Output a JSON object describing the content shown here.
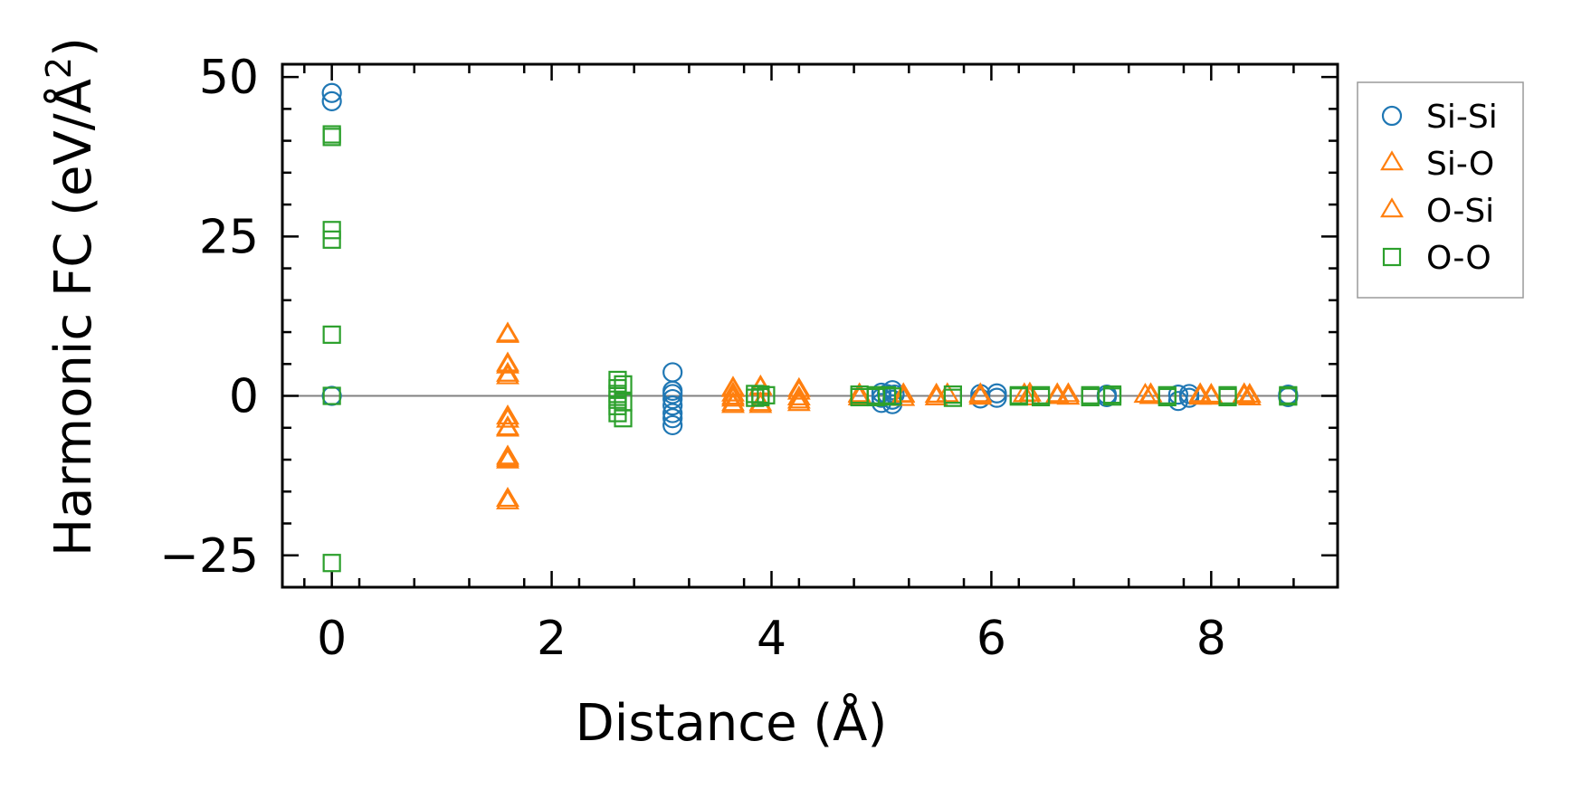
{
  "chart_data": {
    "type": "scatter",
    "xlabel": "Distance (Å)",
    "ylabel_main": "Harmonic FC (eV/Å",
    "ylabel_sup": "2",
    "ylabel_close": ")",
    "xlim": [
      -0.45,
      9.15
    ],
    "ylim": [
      -30,
      52
    ],
    "xticks": [
      0,
      2,
      4,
      6,
      8
    ],
    "yticks": [
      -25,
      0,
      25,
      50
    ],
    "xtick_labels": [
      "0",
      "2",
      "4",
      "6",
      "8"
    ],
    "ytick_labels": [
      "−25",
      "0",
      "25",
      "50"
    ],
    "reference_line_y": 0,
    "legend_position": "outside-right-top",
    "series": [
      {
        "name": "Si-Si",
        "marker": "circle",
        "color": "#1f77b4",
        "points": [
          [
            0,
            47.5
          ],
          [
            0,
            46.2
          ],
          [
            0,
            0
          ],
          [
            3.1,
            3.7
          ],
          [
            3.1,
            0.8
          ],
          [
            3.1,
            0.3
          ],
          [
            3.1,
            -0.5
          ],
          [
            3.1,
            -1.5
          ],
          [
            3.1,
            -2.7
          ],
          [
            3.1,
            -3.5
          ],
          [
            3.1,
            -4.6
          ],
          [
            5.0,
            0.5
          ],
          [
            5.0,
            -0.3
          ],
          [
            5.0,
            -1.1
          ],
          [
            5.05,
            0.3
          ],
          [
            5.1,
            0.9
          ],
          [
            5.1,
            -0.6
          ],
          [
            5.1,
            -1.3
          ],
          [
            5.12,
            0.2
          ],
          [
            5.9,
            0.3
          ],
          [
            5.9,
            -0.4
          ],
          [
            6.05,
            0.4
          ],
          [
            6.05,
            -0.3
          ],
          [
            7.05,
            0.2
          ],
          [
            7.05,
            -0.2
          ],
          [
            7.7,
            0.2
          ],
          [
            7.7,
            -0.8
          ],
          [
            7.8,
            0.3
          ],
          [
            7.8,
            -0.3
          ],
          [
            8.7,
            0.2
          ],
          [
            8.7,
            -0.2
          ]
        ]
      },
      {
        "name": "Si-O",
        "marker": "triangle",
        "color": "#ff7f0e",
        "points": [
          [
            1.6,
            9.7
          ],
          [
            1.6,
            5.0
          ],
          [
            1.6,
            3.4
          ],
          [
            1.6,
            -3.3
          ],
          [
            1.6,
            -5.0
          ],
          [
            1.6,
            -9.6
          ],
          [
            1.6,
            -10.2
          ],
          [
            1.6,
            -16.6
          ],
          [
            3.65,
            1.2
          ],
          [
            3.65,
            0.3
          ],
          [
            3.65,
            -0.5
          ],
          [
            3.65,
            -1.5
          ],
          [
            3.9,
            1.4
          ],
          [
            3.9,
            -1.5
          ],
          [
            4.25,
            1.0
          ],
          [
            4.25,
            -0.3
          ],
          [
            4.25,
            -1.2
          ],
          [
            4.8,
            0.2
          ],
          [
            4.8,
            -0.3
          ],
          [
            5.2,
            0.2
          ],
          [
            5.2,
            -0.4
          ],
          [
            5.5,
            0.1
          ],
          [
            5.5,
            -0.3
          ],
          [
            5.9,
            0.2
          ],
          [
            5.9,
            -0.2
          ],
          [
            6.35,
            0.3
          ],
          [
            6.35,
            -0.3
          ],
          [
            6.6,
            0.2
          ],
          [
            6.6,
            -0.1
          ],
          [
            6.7,
            0.2
          ],
          [
            6.7,
            -0.2
          ],
          [
            7.45,
            0.2
          ],
          [
            7.45,
            -0.1
          ],
          [
            7.9,
            0.2
          ],
          [
            7.9,
            -0.2
          ],
          [
            8.0,
            0.1
          ],
          [
            8.0,
            -0.2
          ],
          [
            8.3,
            0.2
          ],
          [
            8.3,
            -0.1
          ],
          [
            8.35,
            0.1
          ],
          [
            8.35,
            -0.3
          ]
        ]
      },
      {
        "name": "O-Si",
        "marker": "triangle",
        "color": "#ff7f0e",
        "points": [
          [
            1.6,
            9.5
          ],
          [
            1.6,
            4.7
          ],
          [
            1.6,
            3.0
          ],
          [
            1.6,
            -3.8
          ],
          [
            1.6,
            -5.2
          ],
          [
            1.6,
            -9.9
          ],
          [
            1.6,
            -16.2
          ],
          [
            3.65,
            1.0
          ],
          [
            3.65,
            -0.2
          ],
          [
            3.65,
            -1.2
          ],
          [
            3.9,
            1.2
          ],
          [
            3.9,
            -1.2
          ],
          [
            4.25,
            0.6
          ],
          [
            4.25,
            -0.8
          ],
          [
            4.8,
            0.1
          ],
          [
            5.2,
            0.1
          ],
          [
            5.5,
            0.1
          ],
          [
            5.6,
            0.2
          ],
          [
            5.9,
            0.1
          ],
          [
            6.3,
            0.2
          ],
          [
            6.6,
            0.1
          ],
          [
            7.4,
            0.1
          ],
          [
            7.9,
            0.1
          ],
          [
            8.3,
            0.1
          ]
        ]
      },
      {
        "name": "O-O",
        "marker": "square",
        "color": "#2ca02c",
        "points": [
          [
            0,
            41.0
          ],
          [
            0,
            40.6
          ],
          [
            0,
            26.0
          ],
          [
            0,
            24.5
          ],
          [
            0,
            9.6
          ],
          [
            0,
            0
          ],
          [
            0,
            -26.2
          ],
          [
            2.6,
            2.5
          ],
          [
            2.6,
            1.2
          ],
          [
            2.6,
            0.3
          ],
          [
            2.6,
            -0.6
          ],
          [
            2.6,
            -1.6
          ],
          [
            2.6,
            -2.7
          ],
          [
            2.65,
            1.8
          ],
          [
            2.65,
            -1.0
          ],
          [
            2.65,
            -3.5
          ],
          [
            3.85,
            0.3
          ],
          [
            3.85,
            -0.3
          ],
          [
            3.9,
            0.2
          ],
          [
            3.9,
            -0.2
          ],
          [
            3.95,
            0.1
          ],
          [
            4.8,
            0.2
          ],
          [
            4.8,
            -0.2
          ],
          [
            4.95,
            0.1
          ],
          [
            4.95,
            -0.2
          ],
          [
            5.05,
            0.1
          ],
          [
            5.1,
            -0.1
          ],
          [
            5.65,
            0.2
          ],
          [
            5.65,
            -0.3
          ],
          [
            6.25,
            0.1
          ],
          [
            6.25,
            -0.1
          ],
          [
            6.45,
            0.1
          ],
          [
            6.45,
            -0.2
          ],
          [
            6.9,
            0.1
          ],
          [
            6.9,
            -0.2
          ],
          [
            7.1,
            0.2
          ],
          [
            7.1,
            -0.1
          ],
          [
            7.6,
            0.1
          ],
          [
            7.6,
            -0.2
          ],
          [
            8.15,
            0.1
          ],
          [
            8.15,
            -0.2
          ],
          [
            8.7,
            0.1
          ],
          [
            8.7,
            -0.1
          ]
        ]
      }
    ]
  }
}
